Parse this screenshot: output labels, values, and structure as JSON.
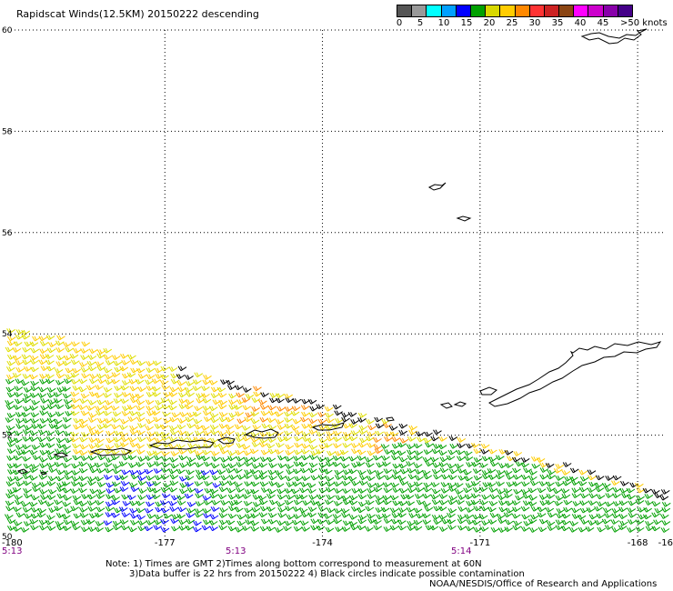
{
  "title": "Rapidscat Winds(12.5KM) 20150222 descending",
  "legend": {
    "colors": [
      "#555555",
      "#999999",
      "#00ffff",
      "#00a0ff",
      "#0000ff",
      "#00a000",
      "#d8d800",
      "#ffcc00",
      "#ff8800",
      "#ff3333",
      "#cc2222",
      "#8b4513",
      "#ff00ff",
      "#cc00cc",
      "#8800aa",
      "#440088"
    ],
    "labels": [
      "0",
      "5",
      "10",
      "15",
      "20",
      "25",
      "30",
      "35",
      "40",
      "45",
      ">50 knots"
    ]
  },
  "map": {
    "lat_labels": [
      "60",
      "58",
      "56",
      "54",
      "52",
      "50"
    ],
    "lon_labels": [
      "-180",
      "-177",
      "-174",
      "-171",
      "-168",
      "-16"
    ],
    "time_labels": [
      "5:13",
      "5:13",
      "5:14"
    ],
    "grid_color": "#000000",
    "time_color": "#800080"
  },
  "notes": {
    "line1": "Note: 1) Times are GMT 2)Times along bottom correspond to measurement at 60N",
    "line2": "3)Data buffer is 22 hrs from 20150222 4) Black circles indicate possible contamination",
    "credit": "NOAA/NESDIS/Office of Research and Applications"
  }
}
